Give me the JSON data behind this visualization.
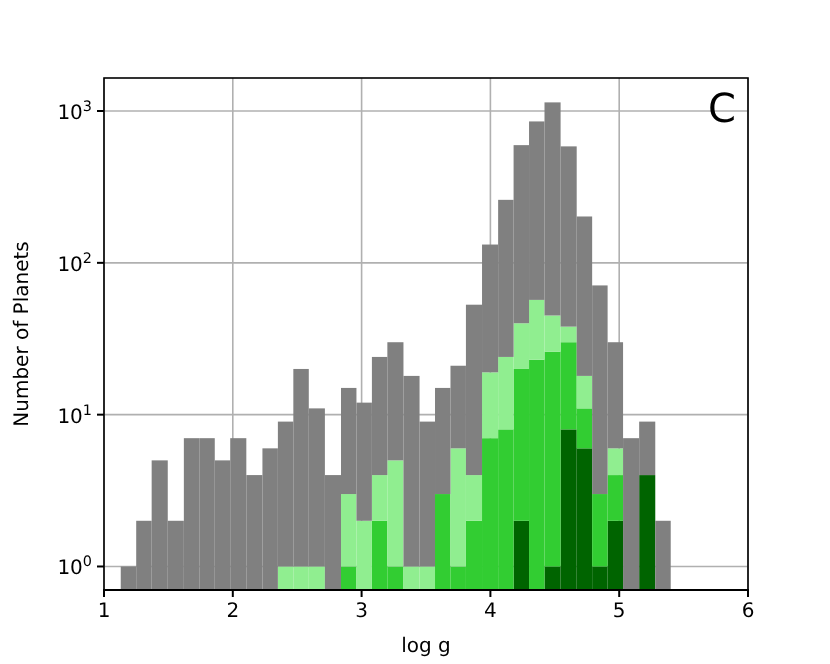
{
  "chart_data": {
    "type": "bar",
    "xlabel": "log g",
    "ylabel": "Number of Planets",
    "stacked": true,
    "x": [
      1.19,
      1.31,
      1.43,
      1.56,
      1.68,
      1.8,
      1.92,
      2.04,
      2.17,
      2.29,
      2.41,
      2.53,
      2.65,
      2.78,
      2.9,
      3.02,
      3.14,
      3.26,
      3.39,
      3.51,
      3.63,
      3.75,
      3.87,
      4.0,
      4.12,
      4.24,
      4.36,
      4.48,
      4.61,
      4.73,
      4.85,
      4.97,
      5.09,
      5.22,
      5.34
    ],
    "series": [
      {
        "color": "#006400",
        "values": [
          null,
          null,
          null,
          null,
          null,
          null,
          null,
          null,
          null,
          null,
          null,
          null,
          null,
          null,
          null,
          null,
          null,
          null,
          null,
          null,
          null,
          null,
          null,
          null,
          null,
          2,
          null,
          1,
          8,
          6,
          1,
          2,
          null,
          4,
          null
        ]
      },
      {
        "color": "#32cd32",
        "values": [
          null,
          null,
          null,
          null,
          null,
          null,
          null,
          null,
          null,
          null,
          null,
          null,
          null,
          null,
          1,
          null,
          2,
          1,
          null,
          null,
          3,
          1,
          2,
          7,
          8,
          18,
          23,
          25,
          22,
          5,
          2,
          2,
          null,
          null,
          null
        ]
      },
      {
        "color": "#90ee90",
        "values": [
          null,
          null,
          null,
          null,
          null,
          null,
          null,
          null,
          null,
          null,
          1,
          1,
          1,
          null,
          2,
          2,
          2,
          4,
          1,
          1,
          null,
          5,
          2,
          12,
          16,
          20,
          34,
          19,
          8,
          7,
          null,
          2,
          null,
          null,
          null
        ]
      },
      {
        "color": "#808080",
        "values": [
          1,
          2,
          5,
          2,
          7,
          7,
          5,
          7,
          4,
          6,
          8,
          19,
          10,
          4,
          12,
          10,
          20,
          25,
          17,
          8,
          12,
          15,
          49,
          113,
          236,
          556,
          797,
          1095,
          547,
          184,
          68,
          24,
          7,
          5,
          2
        ]
      }
    ],
    "xlim": [
      1,
      6
    ],
    "xticks": [
      1,
      2,
      3,
      4,
      5,
      6
    ],
    "ylim": [
      0.7,
      1650
    ],
    "yticks": [
      {
        "value": 1,
        "label": "10$^{0}$"
      },
      {
        "value": 10,
        "label": "10$^{1}$"
      },
      {
        "value": 100,
        "label": "10$^{2}$"
      },
      {
        "value": 1000,
        "label": "10$^{3}$"
      }
    ],
    "log": "y",
    "grid": true,
    "annotations": [
      "C"
    ]
  }
}
